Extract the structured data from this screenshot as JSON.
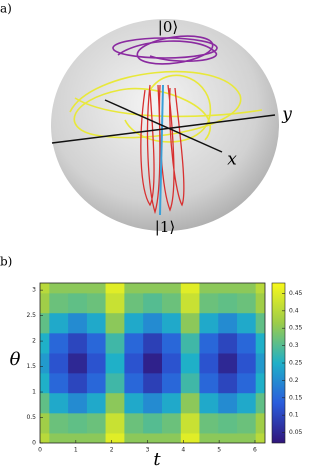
{
  "sphere": {
    "panel_label": "a)",
    "state_top": "|0⟩",
    "state_bottom": "|1⟩",
    "axis_x": "x",
    "axis_y": "y"
  },
  "chart_data": {
    "type": "contour",
    "panel_label": "b)",
    "xlabel": "t",
    "ylabel": "θ",
    "x": [
      0,
      0.52,
      1.05,
      1.57,
      2.09,
      2.62,
      3.14,
      3.67,
      4.19,
      4.71,
      5.24,
      5.76,
      6.28
    ],
    "y": [
      0,
      0.39,
      0.79,
      1.18,
      1.57,
      1.96,
      2.36,
      2.75,
      3.14
    ],
    "z": [
      [
        0.4,
        0.35,
        0.35,
        0.35,
        0.45,
        0.35,
        0.35,
        0.35,
        0.45,
        0.35,
        0.35,
        0.35,
        0.4
      ],
      [
        0.37,
        0.32,
        0.31,
        0.32,
        0.42,
        0.32,
        0.3,
        0.32,
        0.42,
        0.32,
        0.31,
        0.32,
        0.37
      ],
      [
        0.31,
        0.24,
        0.2,
        0.24,
        0.35,
        0.24,
        0.2,
        0.24,
        0.35,
        0.24,
        0.2,
        0.24,
        0.31
      ],
      [
        0.25,
        0.15,
        0.1,
        0.15,
        0.28,
        0.15,
        0.09,
        0.15,
        0.28,
        0.15,
        0.1,
        0.15,
        0.25
      ],
      [
        0.22,
        0.12,
        0.05,
        0.12,
        0.25,
        0.12,
        0.04,
        0.12,
        0.25,
        0.12,
        0.05,
        0.12,
        0.22
      ],
      [
        0.25,
        0.15,
        0.1,
        0.15,
        0.28,
        0.15,
        0.09,
        0.15,
        0.28,
        0.15,
        0.1,
        0.15,
        0.25
      ],
      [
        0.31,
        0.24,
        0.2,
        0.24,
        0.35,
        0.24,
        0.2,
        0.24,
        0.35,
        0.24,
        0.2,
        0.24,
        0.31
      ],
      [
        0.37,
        0.32,
        0.31,
        0.32,
        0.42,
        0.32,
        0.3,
        0.32,
        0.42,
        0.32,
        0.31,
        0.32,
        0.37
      ],
      [
        0.4,
        0.35,
        0.35,
        0.35,
        0.45,
        0.35,
        0.35,
        0.35,
        0.45,
        0.35,
        0.35,
        0.35,
        0.4
      ]
    ],
    "xlim": [
      0,
      6.28
    ],
    "ylim": [
      0,
      3.14
    ],
    "xticks": [
      0,
      1,
      2,
      3,
      4,
      5,
      6
    ],
    "yticks": [
      0,
      0.5,
      1,
      1.5,
      2,
      2.5,
      3
    ],
    "zlim": [
      0.02,
      0.48
    ],
    "zticks": [
      0.05,
      0.1,
      0.15,
      0.2,
      0.25,
      0.3,
      0.35,
      0.4,
      0.45
    ],
    "colormap": [
      "#30157a",
      "#2a5cdc",
      "#1fb0c8",
      "#9ccc4a",
      "#f8f81a"
    ]
  }
}
